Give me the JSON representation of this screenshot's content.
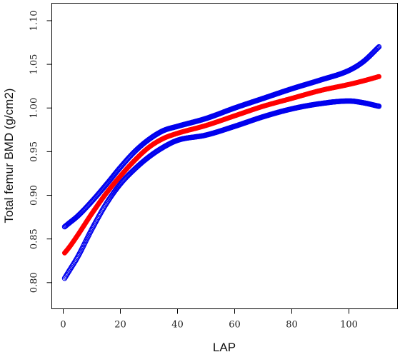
{
  "chart_data": {
    "type": "line",
    "title": "",
    "xlabel": "LAP",
    "ylabel": "Total femur BMD (g/cm2)",
    "xlim": [
      -4,
      117
    ],
    "ylim": [
      0.77,
      1.12
    ],
    "xticks": [
      0,
      20,
      40,
      60,
      80,
      100
    ],
    "yticks": [
      0.8,
      0.85,
      0.9,
      0.95,
      1.0,
      1.05,
      1.1
    ],
    "xtick_labels": [
      "0",
      "20",
      "40",
      "60",
      "80",
      "100"
    ],
    "ytick_labels": [
      "0.80",
      "0.85",
      "0.90",
      "0.95",
      "1.00",
      "1.05",
      "1.10"
    ],
    "grid": false,
    "series": [
      {
        "role": "upper",
        "color": "#0000ee",
        "marker": "open-circle",
        "x": [
          0.5,
          2,
          5,
          10,
          15,
          20,
          25,
          30,
          35,
          40,
          50,
          60,
          70,
          80,
          90,
          100,
          105,
          110.5
        ],
        "y": [
          0.864,
          0.868,
          0.876,
          0.893,
          0.912,
          0.932,
          0.95,
          0.964,
          0.974,
          0.979,
          0.988,
          1.0,
          1.011,
          1.022,
          1.032,
          1.043,
          1.053,
          1.07
        ]
      },
      {
        "role": "fit",
        "color": "#ff0000",
        "marker": "filled-circle",
        "x": [
          0.5,
          2,
          5,
          10,
          15,
          20,
          25,
          30,
          35,
          40,
          50,
          60,
          70,
          80,
          90,
          100,
          105,
          110.5
        ],
        "y": [
          0.834,
          0.84,
          0.854,
          0.879,
          0.902,
          0.922,
          0.94,
          0.955,
          0.965,
          0.971,
          0.98,
          0.991,
          1.002,
          1.011,
          1.02,
          1.027,
          1.031,
          1.036
        ]
      },
      {
        "role": "lower",
        "color": "#0000ee",
        "marker": "open-circle",
        "x": [
          0.5,
          2,
          5,
          10,
          15,
          20,
          25,
          30,
          35,
          40,
          50,
          60,
          70,
          80,
          90,
          100,
          105,
          110.5
        ],
        "y": [
          0.805,
          0.813,
          0.829,
          0.861,
          0.89,
          0.913,
          0.93,
          0.944,
          0.955,
          0.963,
          0.969,
          0.979,
          0.99,
          0.999,
          1.005,
          1.008,
          1.006,
          1.002
        ]
      }
    ]
  }
}
